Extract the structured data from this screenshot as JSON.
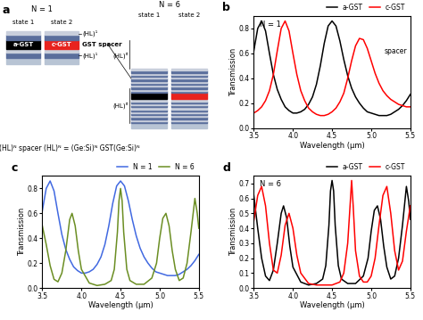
{
  "diagram": {
    "label": "a",
    "left": {
      "title": "N = 1",
      "states": [
        "state 1",
        "state 2"
      ],
      "layers": [
        "a-GST",
        "c-GST"
      ],
      "period_labels": [
        "(HL)¹",
        "(HL)¹"
      ]
    },
    "center_label": "GST spacer",
    "right": {
      "title": "N = 6",
      "states": [
        "state 1",
        "state 2"
      ],
      "period_labels": [
        "(HL)⁶",
        "(HL)⁶"
      ]
    },
    "caption": "(HL)ᴺ spacer (HL)ᴺ = (Ge:Si)ᴺ GST(Ge:Si)ᴺ"
  },
  "chart_data": [
    {
      "type": "line",
      "title": "b",
      "x_label": "Wavelength (μm)",
      "y_label": "Transmission",
      "annotations": [
        "N = 1",
        "spacer"
      ],
      "xlim": [
        3.5,
        5.5
      ],
      "xticks": [
        3.5,
        4.0,
        4.5,
        5.0,
        5.5
      ],
      "ylim": [
        0.0,
        0.9
      ],
      "yticks": [
        0.0,
        0.2,
        0.4,
        0.6,
        0.8
      ],
      "legend": "upper right",
      "series": [
        {
          "name": "a-GST",
          "color": "#000000",
          "x": [
            3.5,
            3.55,
            3.6,
            3.65,
            3.7,
            3.75,
            3.8,
            3.85,
            3.9,
            3.95,
            4.0,
            4.05,
            4.1,
            4.15,
            4.2,
            4.25,
            4.3,
            4.35,
            4.4,
            4.45,
            4.5,
            4.55,
            4.6,
            4.65,
            4.7,
            4.75,
            4.8,
            4.85,
            4.9,
            4.95,
            5.0,
            5.05,
            5.1,
            5.15,
            5.2,
            5.25,
            5.3,
            5.35,
            5.4,
            5.45,
            5.5
          ],
          "values": [
            0.62,
            0.8,
            0.86,
            0.78,
            0.6,
            0.43,
            0.31,
            0.23,
            0.17,
            0.14,
            0.12,
            0.12,
            0.13,
            0.15,
            0.19,
            0.25,
            0.35,
            0.5,
            0.68,
            0.82,
            0.86,
            0.82,
            0.7,
            0.55,
            0.42,
            0.32,
            0.25,
            0.2,
            0.16,
            0.13,
            0.12,
            0.11,
            0.1,
            0.1,
            0.1,
            0.11,
            0.13,
            0.15,
            0.18,
            0.22,
            0.27
          ]
        },
        {
          "name": "c-GST",
          "color": "#ff0000",
          "x": [
            3.5,
            3.55,
            3.6,
            3.65,
            3.7,
            3.75,
            3.8,
            3.85,
            3.9,
            3.95,
            4.0,
            4.05,
            4.1,
            4.15,
            4.2,
            4.25,
            4.3,
            4.35,
            4.4,
            4.45,
            4.5,
            4.55,
            4.6,
            4.65,
            4.7,
            4.75,
            4.8,
            4.85,
            4.9,
            4.95,
            5.0,
            5.05,
            5.1,
            5.15,
            5.2,
            5.25,
            5.3,
            5.35,
            5.4,
            5.45,
            5.5
          ],
          "values": [
            0.12,
            0.14,
            0.17,
            0.22,
            0.3,
            0.43,
            0.62,
            0.8,
            0.86,
            0.78,
            0.6,
            0.43,
            0.3,
            0.22,
            0.16,
            0.13,
            0.11,
            0.1,
            0.1,
            0.11,
            0.13,
            0.16,
            0.21,
            0.28,
            0.4,
            0.54,
            0.66,
            0.72,
            0.71,
            0.64,
            0.54,
            0.44,
            0.36,
            0.3,
            0.26,
            0.23,
            0.21,
            0.19,
            0.18,
            0.17,
            0.17
          ]
        }
      ]
    },
    {
      "type": "line",
      "title": "c",
      "x_label": "Wavelength (μm)",
      "y_label": "Transmission",
      "xlim": [
        3.5,
        5.5
      ],
      "xticks": [
        3.5,
        4.0,
        4.5,
        5.0,
        5.5
      ],
      "ylim": [
        0.0,
        0.9
      ],
      "yticks": [
        0.0,
        0.2,
        0.4,
        0.6,
        0.8
      ],
      "legend": "upper right",
      "series": [
        {
          "name": "N = 1",
          "color": "#4169e1",
          "x": [
            3.5,
            3.55,
            3.6,
            3.65,
            3.7,
            3.75,
            3.8,
            3.85,
            3.9,
            3.95,
            4.0,
            4.05,
            4.1,
            4.15,
            4.2,
            4.25,
            4.3,
            4.35,
            4.4,
            4.45,
            4.5,
            4.55,
            4.6,
            4.65,
            4.7,
            4.75,
            4.8,
            4.85,
            4.9,
            4.95,
            5.0,
            5.05,
            5.1,
            5.15,
            5.2,
            5.25,
            5.3,
            5.35,
            5.4,
            5.45,
            5.5
          ],
          "values": [
            0.62,
            0.8,
            0.86,
            0.78,
            0.6,
            0.43,
            0.31,
            0.23,
            0.17,
            0.14,
            0.12,
            0.12,
            0.13,
            0.15,
            0.19,
            0.25,
            0.35,
            0.5,
            0.68,
            0.82,
            0.86,
            0.82,
            0.7,
            0.55,
            0.42,
            0.32,
            0.25,
            0.2,
            0.16,
            0.13,
            0.12,
            0.11,
            0.1,
            0.1,
            0.1,
            0.11,
            0.13,
            0.15,
            0.18,
            0.22,
            0.27
          ]
        },
        {
          "name": "N = 6",
          "color": "#6b8e23",
          "x": [
            3.5,
            3.55,
            3.6,
            3.65,
            3.7,
            3.75,
            3.8,
            3.85,
            3.88,
            3.92,
            3.96,
            4.0,
            4.1,
            4.2,
            4.3,
            4.38,
            4.42,
            4.46,
            4.48,
            4.5,
            4.52,
            4.54,
            4.58,
            4.62,
            4.7,
            4.8,
            4.9,
            4.96,
            5.0,
            5.04,
            5.08,
            5.12,
            5.16,
            5.2,
            5.25,
            5.3,
            5.35,
            5.4,
            5.45,
            5.48,
            5.5
          ],
          "values": [
            0.5,
            0.35,
            0.18,
            0.07,
            0.05,
            0.12,
            0.3,
            0.55,
            0.6,
            0.5,
            0.3,
            0.15,
            0.04,
            0.02,
            0.03,
            0.06,
            0.15,
            0.45,
            0.7,
            0.8,
            0.7,
            0.45,
            0.15,
            0.06,
            0.03,
            0.03,
            0.08,
            0.2,
            0.4,
            0.56,
            0.6,
            0.5,
            0.3,
            0.15,
            0.06,
            0.08,
            0.2,
            0.45,
            0.72,
            0.6,
            0.48
          ]
        }
      ]
    },
    {
      "type": "line",
      "title": "d",
      "x_label": "Wavelength (μm)",
      "y_label": "Transmission",
      "annotations": [
        "N = 6"
      ],
      "xlim": [
        3.5,
        5.5
      ],
      "xticks": [
        3.5,
        4.0,
        4.5,
        5.0,
        5.5
      ],
      "ylim": [
        0.0,
        0.75
      ],
      "yticks": [
        0.0,
        0.1,
        0.2,
        0.3,
        0.4,
        0.5,
        0.6,
        0.7
      ],
      "legend": "upper right",
      "series": [
        {
          "name": "a-GST",
          "color": "#000000",
          "x": [
            3.5,
            3.55,
            3.6,
            3.65,
            3.7,
            3.75,
            3.8,
            3.85,
            3.88,
            3.92,
            3.96,
            4.0,
            4.1,
            4.2,
            4.3,
            4.38,
            4.42,
            4.46,
            4.48,
            4.5,
            4.52,
            4.54,
            4.58,
            4.62,
            4.7,
            4.8,
            4.9,
            4.96,
            5.0,
            5.04,
            5.08,
            5.12,
            5.16,
            5.2,
            5.25,
            5.3,
            5.35,
            5.4,
            5.45,
            5.48,
            5.5
          ],
          "values": [
            0.62,
            0.4,
            0.2,
            0.08,
            0.05,
            0.12,
            0.3,
            0.5,
            0.55,
            0.47,
            0.28,
            0.14,
            0.04,
            0.02,
            0.03,
            0.06,
            0.15,
            0.42,
            0.65,
            0.72,
            0.65,
            0.42,
            0.15,
            0.06,
            0.03,
            0.03,
            0.08,
            0.2,
            0.38,
            0.52,
            0.55,
            0.46,
            0.28,
            0.14,
            0.06,
            0.08,
            0.2,
            0.42,
            0.68,
            0.58,
            0.46
          ]
        },
        {
          "name": "c-GST",
          "color": "#ff0000",
          "x": [
            3.5,
            3.55,
            3.6,
            3.65,
            3.7,
            3.75,
            3.8,
            3.85,
            3.9,
            3.95,
            4.0,
            4.05,
            4.1,
            4.2,
            4.3,
            4.4,
            4.5,
            4.6,
            4.65,
            4.7,
            4.73,
            4.75,
            4.77,
            4.8,
            4.85,
            4.9,
            4.95,
            5.0,
            5.05,
            5.1,
            5.15,
            5.2,
            5.25,
            5.3,
            5.35,
            5.4,
            5.45,
            5.5
          ],
          "values": [
            0.45,
            0.62,
            0.68,
            0.55,
            0.3,
            0.12,
            0.1,
            0.22,
            0.42,
            0.5,
            0.4,
            0.22,
            0.1,
            0.03,
            0.02,
            0.02,
            0.02,
            0.04,
            0.1,
            0.3,
            0.55,
            0.72,
            0.55,
            0.25,
            0.08,
            0.04,
            0.04,
            0.08,
            0.2,
            0.42,
            0.62,
            0.68,
            0.5,
            0.25,
            0.12,
            0.18,
            0.38,
            0.55
          ]
        }
      ]
    }
  ]
}
